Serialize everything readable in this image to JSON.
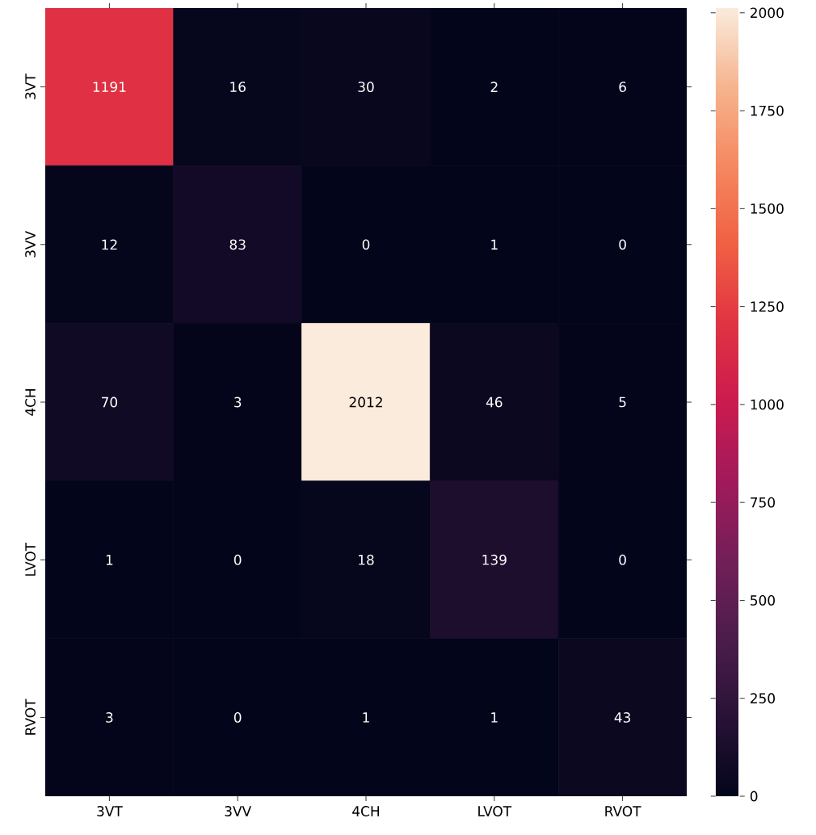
{
  "chart_data": {
    "type": "heatmap",
    "categories": [
      "3VT",
      "3VV",
      "4CH",
      "LVOT",
      "RVOT"
    ],
    "y_categories": [
      "3VT",
      "3VV",
      "4CH",
      "LVOT",
      "RVOT"
    ],
    "cells": [
      [
        1191,
        16,
        30,
        2,
        6
      ],
      [
        12,
        83,
        0,
        1,
        0
      ],
      [
        70,
        3,
        2012,
        46,
        5
      ],
      [
        1,
        0,
        18,
        139,
        0
      ],
      [
        3,
        0,
        1,
        1,
        43
      ]
    ],
    "data_labels": true,
    "clim": [
      0,
      2012
    ],
    "cticks": [
      0,
      250,
      500,
      750,
      1000,
      1250,
      1500,
      1750,
      2000
    ]
  }
}
